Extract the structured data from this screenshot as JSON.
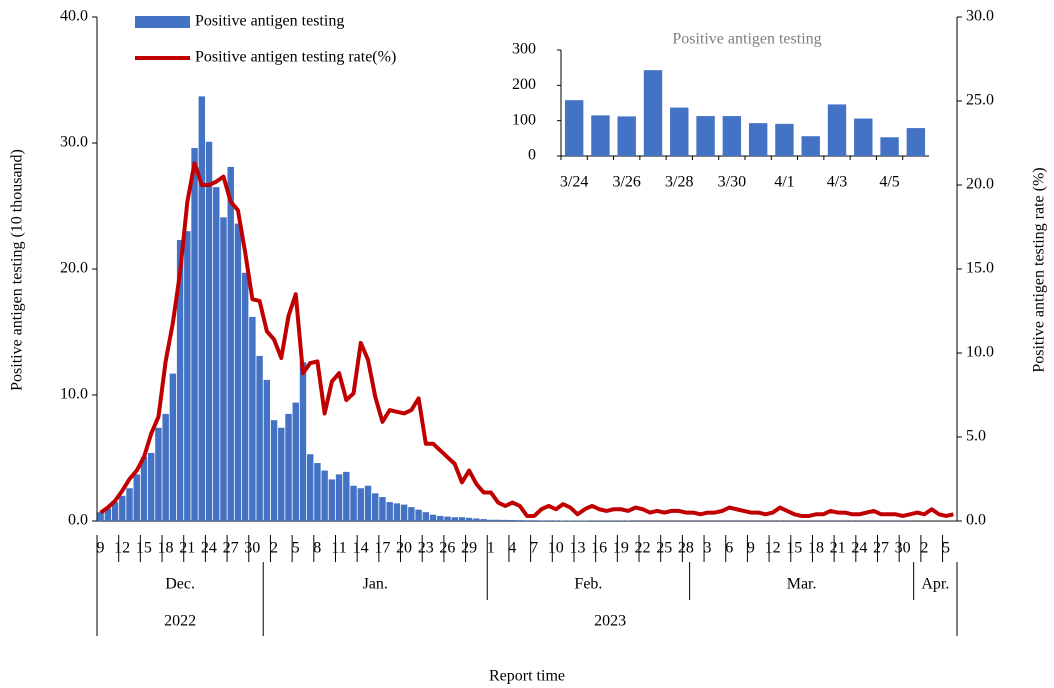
{
  "chart_data": [
    {
      "type": "combo",
      "y_label": "Positive antigen testing (10 thousand)",
      "y2_label": "Positive antigen testing rate (%)",
      "x_label": "Report time",
      "categories": [
        "9",
        null,
        null,
        "12",
        null,
        null,
        "15",
        null,
        null,
        "18",
        null,
        null,
        "21",
        null,
        null,
        "24",
        null,
        null,
        "27",
        null,
        null,
        "30",
        null,
        null,
        "2",
        null,
        null,
        "5",
        null,
        null,
        "8",
        null,
        null,
        "11",
        null,
        null,
        "14",
        null,
        null,
        "17",
        null,
        null,
        "20",
        null,
        null,
        "23",
        null,
        null,
        "26",
        null,
        null,
        "29",
        null,
        null,
        "1",
        null,
        null,
        "4",
        null,
        null,
        "7",
        null,
        null,
        "10",
        null,
        null,
        "13",
        null,
        null,
        "16",
        null,
        null,
        "19",
        null,
        null,
        "22",
        null,
        null,
        "25",
        null,
        null,
        "28",
        null,
        null,
        "3",
        null,
        null,
        "6",
        null,
        null,
        "9",
        null,
        null,
        "12",
        null,
        null,
        "15",
        null,
        null,
        "18",
        null,
        null,
        "21",
        null,
        null,
        "24",
        null,
        null,
        "27",
        null,
        null,
        "30",
        null,
        null,
        "2",
        null,
        null,
        "5",
        null
      ],
      "month_groups": [
        {
          "label": "Dec.",
          "span": 23
        },
        {
          "label": "Jan.",
          "span": 31
        },
        {
          "label": "Feb.",
          "span": 28
        },
        {
          "label": "Mar.",
          "span": 31
        },
        {
          "label": "Apr.",
          "span": 6
        }
      ],
      "year_groups": [
        {
          "label": "2022",
          "span": 23
        },
        {
          "label": "2023",
          "span": 96
        }
      ],
      "series": [
        {
          "name": "Positive antigen testing",
          "type": "bar",
          "color": "#4472c4",
          "values": [
            0.7,
            1.0,
            1.5,
            2.0,
            2.6,
            3.7,
            5.1,
            5.4,
            7.4,
            8.5,
            11.7,
            22.3,
            23.0,
            29.6,
            33.7,
            30.1,
            26.5,
            24.1,
            28.1,
            23.6,
            19.7,
            16.2,
            13.1,
            11.2,
            8.0,
            7.4,
            8.5,
            9.4,
            12.6,
            5.3,
            4.6,
            4.0,
            3.3,
            3.7,
            3.9,
            2.8,
            2.6,
            2.8,
            2.2,
            1.9,
            1.5,
            1.4,
            1.3,
            1.1,
            0.9,
            0.7,
            0.5,
            0.4,
            0.35,
            0.3,
            0.3,
            0.25,
            0.2,
            0.15,
            0.1,
            0.1,
            0.09,
            0.08,
            0.07,
            0.06,
            0.06,
            0.05,
            0.05,
            0.05,
            0.04,
            0.04,
            0.04,
            0.04,
            0.03,
            0.03,
            0.03,
            0.03,
            0.03,
            0.03,
            0.02,
            0.02,
            0.02,
            0.02,
            0.02,
            0.02,
            0.02,
            0.02,
            0.02,
            0.02,
            0.02,
            0.02,
            0.02,
            0.02,
            0.02,
            0.02,
            0.02,
            0.02,
            0.02,
            0.02,
            0.02,
            0.02,
            0.02,
            0.02,
            0.02,
            0.02,
            0.02,
            0.02,
            0.02,
            0.02,
            0.02,
            0.02,
            0.02,
            0.02,
            0.02,
            0.02,
            0.02,
            0.02,
            0.02,
            0.01,
            0.01,
            0.01,
            0.01,
            0.01,
            0.01
          ]
        },
        {
          "name": "Positive antigen testing rate(%)",
          "type": "line",
          "axis": "y2",
          "color": "#c00000",
          "values": [
            0.5,
            0.8,
            1.2,
            1.8,
            2.5,
            3.0,
            3.8,
            5.2,
            6.2,
            9.5,
            11.8,
            14.8,
            19.0,
            21.3,
            20.0,
            20.0,
            20.2,
            20.5,
            19.0,
            18.5,
            16.0,
            13.2,
            13.1,
            11.3,
            10.8,
            9.7,
            12.2,
            13.5,
            8.8,
            9.4,
            9.5,
            6.4,
            8.3,
            8.8,
            7.2,
            7.6,
            10.6,
            9.6,
            7.4,
            5.9,
            6.6,
            6.5,
            6.4,
            6.6,
            7.3,
            4.6,
            4.6,
            4.2,
            3.8,
            3.4,
            2.3,
            3.0,
            2.2,
            1.7,
            1.7,
            1.1,
            0.9,
            1.1,
            0.9,
            0.3,
            0.3,
            0.7,
            0.9,
            0.7,
            1.0,
            0.8,
            0.4,
            0.7,
            0.9,
            0.7,
            0.6,
            0.7,
            0.7,
            0.6,
            0.8,
            0.7,
            0.5,
            0.6,
            0.5,
            0.6,
            0.6,
            0.5,
            0.5,
            0.4,
            0.5,
            0.5,
            0.6,
            0.8,
            0.7,
            0.6,
            0.5,
            0.5,
            0.4,
            0.5,
            0.8,
            0.6,
            0.4,
            0.3,
            0.3,
            0.4,
            0.4,
            0.6,
            0.5,
            0.5,
            0.4,
            0.4,
            0.5,
            0.6,
            0.4,
            0.4,
            0.4,
            0.3,
            0.4,
            0.5,
            0.4,
            0.7,
            0.4,
            0.3,
            0.4
          ]
        }
      ],
      "ylim": [
        0,
        40
      ],
      "yticks": [
        {
          "value": 0,
          "label": "0.0"
        },
        {
          "value": 10,
          "label": "10.0"
        },
        {
          "value": 20,
          "label": "20.0"
        },
        {
          "value": 30,
          "label": "30.0"
        },
        {
          "value": 40,
          "label": "40.0"
        }
      ],
      "y2lim": [
        0,
        30
      ],
      "y2ticks": [
        {
          "value": 0,
          "label": "0.0"
        },
        {
          "value": 5,
          "label": "5.0"
        },
        {
          "value": 10,
          "label": "10.0"
        },
        {
          "value": 15,
          "label": "15.0"
        },
        {
          "value": 20,
          "label": "20.0"
        },
        {
          "value": 25,
          "label": "25.0"
        },
        {
          "value": 30,
          "label": "30.0"
        }
      ],
      "legend": "top-left",
      "grid": false
    },
    {
      "type": "bar",
      "title": "Positive antigen testing",
      "categories": [
        "3/24",
        null,
        "3/26",
        null,
        "3/28",
        null,
        "3/30",
        null,
        "4/1",
        null,
        "4/3",
        null,
        "4/5",
        null
      ],
      "values": [
        158,
        115,
        112,
        243,
        137,
        113,
        113,
        93,
        91,
        56,
        146,
        106,
        53,
        79
      ],
      "color": "#4472c4",
      "ylim": [
        0,
        300
      ],
      "yticks": [
        0,
        100,
        200,
        300
      ],
      "grid": false
    }
  ]
}
